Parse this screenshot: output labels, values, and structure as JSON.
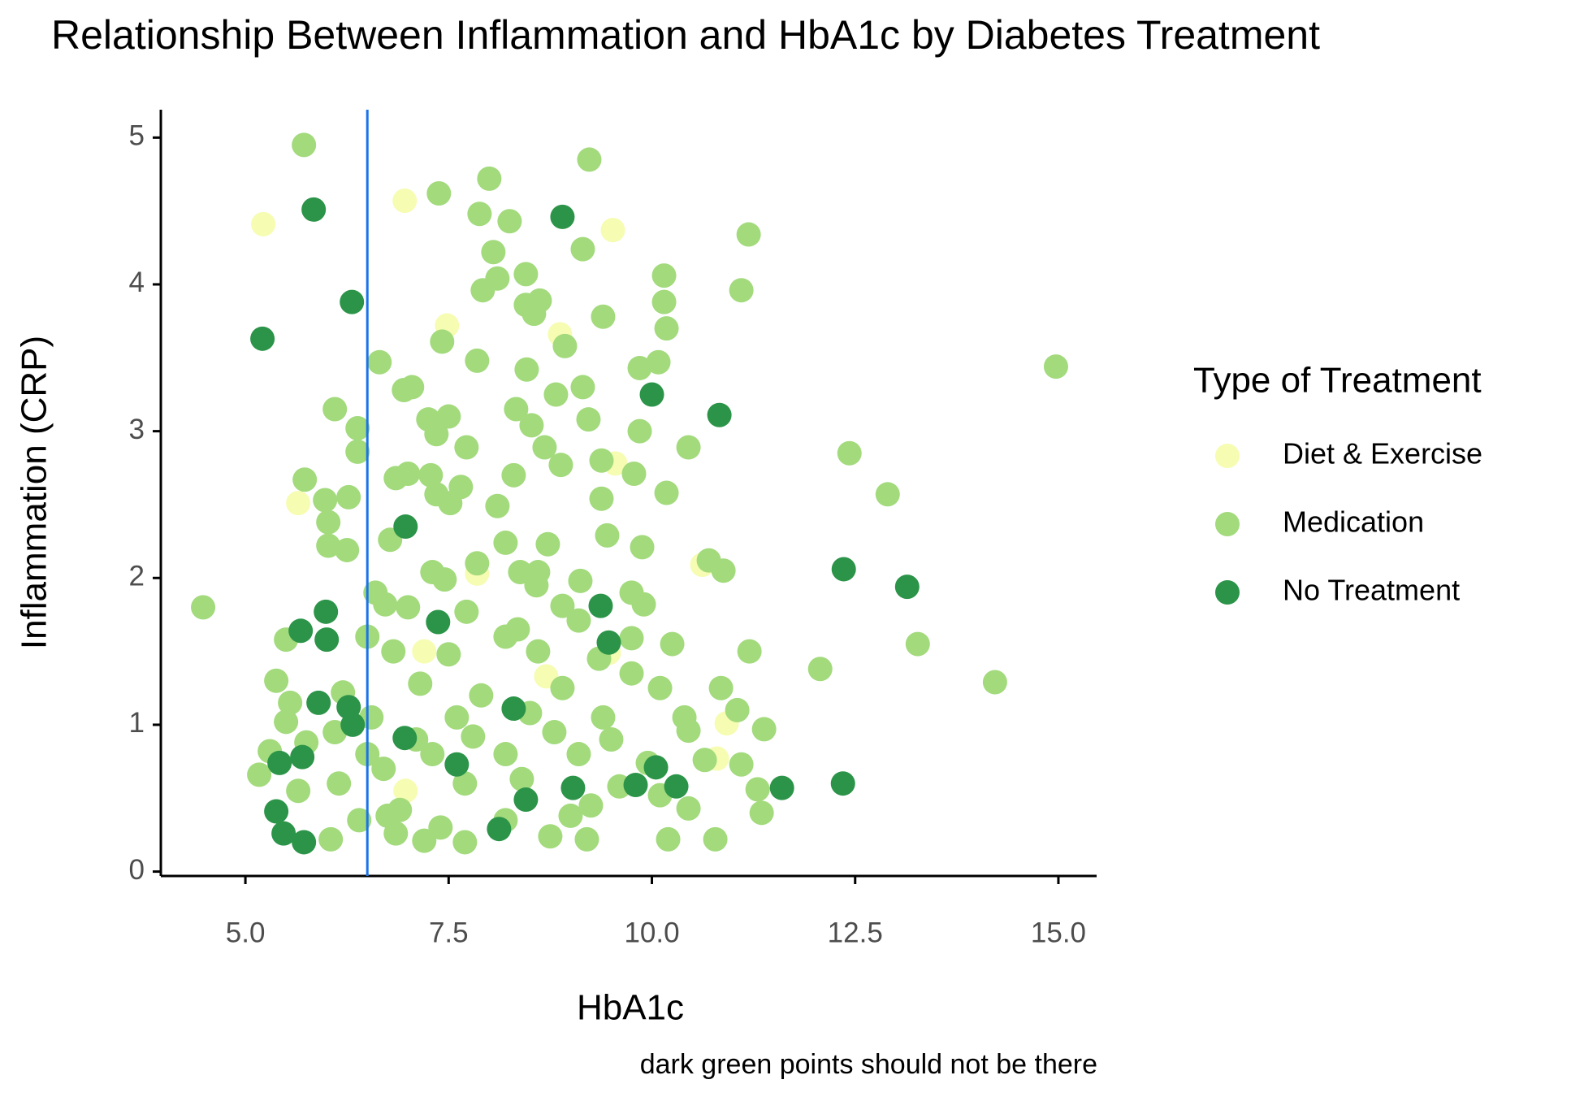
{
  "chart_data": {
    "type": "scatter",
    "title": "Relationship Between Inflammation and HbA1c by Diabetes Treatment",
    "x_label": "HbA1c",
    "y_label": "Inflammation (CRP)",
    "caption": "dark green points should not be there",
    "legend_title": "Type of Treatment",
    "xlim": [
      3.96,
      15.47
    ],
    "ylim": [
      -0.03,
      5.19
    ],
    "xticks": [
      {
        "value": 5,
        "label": "5.0"
      },
      7.5,
      {
        "value": 10,
        "label": "10.0"
      },
      12.5,
      {
        "value": 15,
        "label": "15.0"
      }
    ],
    "yticks": [
      0,
      1,
      2,
      3,
      4,
      5
    ],
    "vline": 6.5,
    "vline_color": "#1a73e8",
    "series": [
      {
        "name": "Diet & Exercise",
        "color": "#f6fcb2",
        "x": [
          5.22,
          6.96,
          9.52,
          7.48,
          8.87,
          9.55,
          5.65,
          7.85,
          10.62,
          9.47,
          7.2,
          8.7,
          10.92,
          10.8,
          6.97
        ],
        "values": [
          4.41,
          4.57,
          4.37,
          3.72,
          3.66,
          2.78,
          2.51,
          2.03,
          2.09,
          1.49,
          1.5,
          1.33,
          1.01,
          0.77,
          0.55
        ]
      },
      {
        "name": "Medication",
        "color": "#a2da7c",
        "x": [
          5.72,
          9.23,
          7.38,
          8.0,
          7.88,
          8.25,
          11.19,
          8.05,
          9.15,
          8.1,
          8.45,
          10.15,
          7.92,
          11.1,
          8.45,
          8.62,
          10.15,
          8.55,
          9.4,
          10.18,
          7.42,
          8.93,
          6.65,
          7.85,
          8.46,
          9.85,
          10.08,
          14.97,
          6.95,
          7.05,
          8.82,
          9.15,
          6.1,
          8.33,
          7.25,
          7.5,
          8.52,
          9.22,
          6.38,
          7.35,
          9.85,
          7.72,
          8.68,
          10.45,
          12.43,
          6.38,
          9.38,
          8.88,
          7.28,
          9.78,
          5.73,
          6.85,
          7.0,
          8.3,
          7.65,
          10.18,
          12.9,
          7.35,
          6.27,
          9.38,
          5.98,
          7.52,
          8.1,
          9.45,
          6.02,
          6.78,
          8.2,
          8.72,
          6.02,
          6.25,
          9.88,
          10.7,
          7.85,
          10.88,
          7.3,
          8.38,
          8.6,
          7.45,
          9.12,
          8.58,
          6.6,
          9.75,
          6.72,
          7.0,
          8.9,
          9.9,
          4.48,
          7.72,
          9.1,
          6.5,
          8.35,
          9.75,
          10.25,
          11.2,
          13.27,
          12.07,
          14.22,
          8.2,
          5.5,
          6.82,
          7.5,
          8.6,
          9.35,
          5.38,
          6.2,
          7.15,
          7.9,
          8.9,
          9.75,
          10.1,
          10.85,
          5.55,
          6.55,
          7.6,
          8.5,
          9.4,
          10.4,
          11.05,
          5.5,
          6.1,
          7.1,
          7.8,
          8.8,
          9.5,
          10.45,
          11.38,
          5.3,
          5.75,
          6.5,
          7.3,
          8.2,
          9.1,
          9.95,
          10.65,
          11.1,
          5.17,
          5.65,
          6.15,
          6.7,
          7.7,
          8.4,
          9.6,
          10.1,
          11.3,
          6.4,
          6.9,
          7.4,
          8.2,
          9.25,
          10.45,
          11.35,
          6.05,
          6.85,
          7.2,
          7.7,
          8.75,
          9.2,
          10.2,
          10.78,
          6.75,
          9.0
        ],
        "values": [
          4.95,
          4.85,
          4.62,
          4.72,
          4.48,
          4.43,
          4.34,
          4.22,
          4.24,
          4.04,
          4.07,
          4.06,
          3.96,
          3.96,
          3.86,
          3.89,
          3.88,
          3.8,
          3.78,
          3.7,
          3.61,
          3.58,
          3.47,
          3.48,
          3.42,
          3.43,
          3.47,
          3.44,
          3.28,
          3.3,
          3.25,
          3.3,
          3.15,
          3.15,
          3.08,
          3.1,
          3.04,
          3.08,
          3.02,
          2.98,
          3.0,
          2.89,
          2.89,
          2.89,
          2.85,
          2.86,
          2.8,
          2.77,
          2.7,
          2.71,
          2.67,
          2.68,
          2.71,
          2.7,
          2.62,
          2.58,
          2.57,
          2.57,
          2.55,
          2.54,
          2.53,
          2.51,
          2.49,
          2.29,
          2.38,
          2.26,
          2.24,
          2.23,
          2.22,
          2.19,
          2.21,
          2.12,
          2.1,
          2.05,
          2.04,
          2.04,
          2.04,
          1.99,
          1.98,
          1.95,
          1.9,
          1.9,
          1.82,
          1.8,
          1.81,
          1.82,
          1.8,
          1.77,
          1.71,
          1.6,
          1.65,
          1.59,
          1.55,
          1.5,
          1.55,
          1.38,
          1.29,
          1.6,
          1.58,
          1.5,
          1.48,
          1.5,
          1.45,
          1.3,
          1.22,
          1.28,
          1.2,
          1.25,
          1.35,
          1.25,
          1.25,
          1.15,
          1.05,
          1.05,
          1.08,
          1.05,
          1.05,
          1.1,
          1.02,
          0.95,
          0.9,
          0.92,
          0.95,
          0.9,
          0.96,
          0.97,
          0.82,
          0.88,
          0.8,
          0.8,
          0.8,
          0.8,
          0.74,
          0.76,
          0.73,
          0.66,
          0.55,
          0.6,
          0.7,
          0.6,
          0.63,
          0.58,
          0.52,
          0.56,
          0.35,
          0.42,
          0.3,
          0.35,
          0.45,
          0.43,
          0.4,
          0.22,
          0.26,
          0.21,
          0.2,
          0.24,
          0.22,
          0.22,
          0.22,
          0.38,
          0.38
        ]
      },
      {
        "name": "No Treatment",
        "color": "#2b9448",
        "x": [
          5.84,
          6.31,
          5.21,
          8.9,
          10,
          10.83,
          6.97,
          12.36,
          13.14,
          9.37,
          5.99,
          7.37,
          5.68,
          6.0,
          9.47,
          5.9,
          6.27,
          6.32,
          6.96,
          8.3,
          5.42,
          5.7,
          9.8,
          10.3,
          11.6,
          12.35,
          9.03,
          8.45,
          5.38,
          5.47,
          5.72,
          8.12,
          10.05,
          7.6
        ],
        "values": [
          4.51,
          3.88,
          3.63,
          4.46,
          3.25,
          3.11,
          2.35,
          2.06,
          1.94,
          1.81,
          1.77,
          1.7,
          1.64,
          1.58,
          1.56,
          1.15,
          1.12,
          1.0,
          0.91,
          1.11,
          0.74,
          0.78,
          0.59,
          0.58,
          0.57,
          0.6,
          0.57,
          0.49,
          0.41,
          0.26,
          0.2,
          0.29,
          0.71,
          0.73
        ]
      }
    ]
  }
}
